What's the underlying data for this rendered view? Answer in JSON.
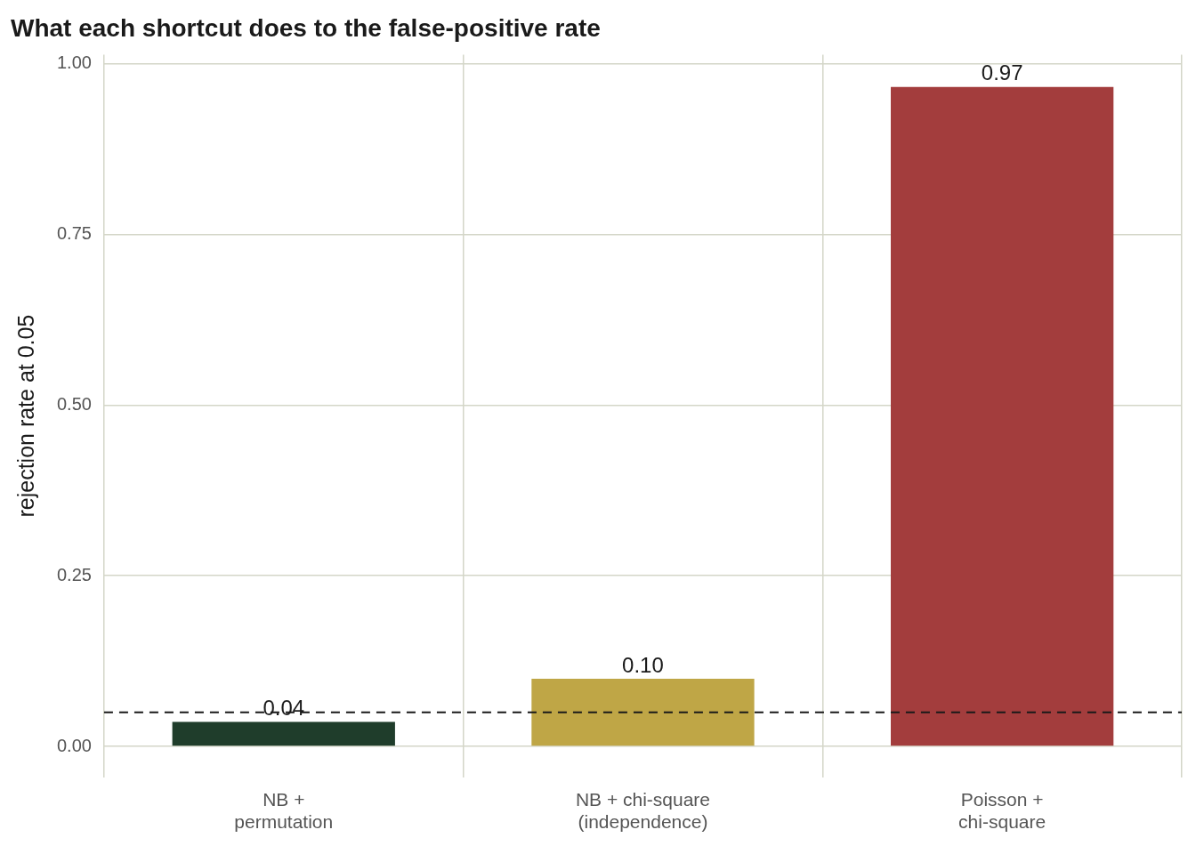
{
  "chart_data": {
    "type": "bar",
    "title": "What each shortcut does to the false-positive rate",
    "ylabel": "rejection rate at 0.05",
    "categories": [
      "NB +\npermutation",
      "NB + chi-square\n(independence)",
      "Poisson +\nchi-square"
    ],
    "values": [
      0.036,
      0.099,
      0.966
    ],
    "colors": [
      "#1f3d2b",
      "#bfa646",
      "#a33d3d"
    ],
    "value_labels": [
      "0.04",
      "0.10",
      "0.97"
    ],
    "ylim": [
      -0.045,
      1.013
    ],
    "yticks": [
      {
        "value": 0,
        "label": "0.00"
      },
      {
        "value": 0.25,
        "label": "0.25"
      },
      {
        "value": 0.5,
        "label": "0.50"
      },
      {
        "value": 0.75,
        "label": "0.75"
      },
      {
        "value": 1,
        "label": "1.00"
      }
    ],
    "ref_lines": [
      {
        "axis": "y",
        "value": 0.05,
        "color": "#1a1a1a",
        "line_style": "dashed"
      }
    ],
    "grid": true,
    "legend": false
  }
}
